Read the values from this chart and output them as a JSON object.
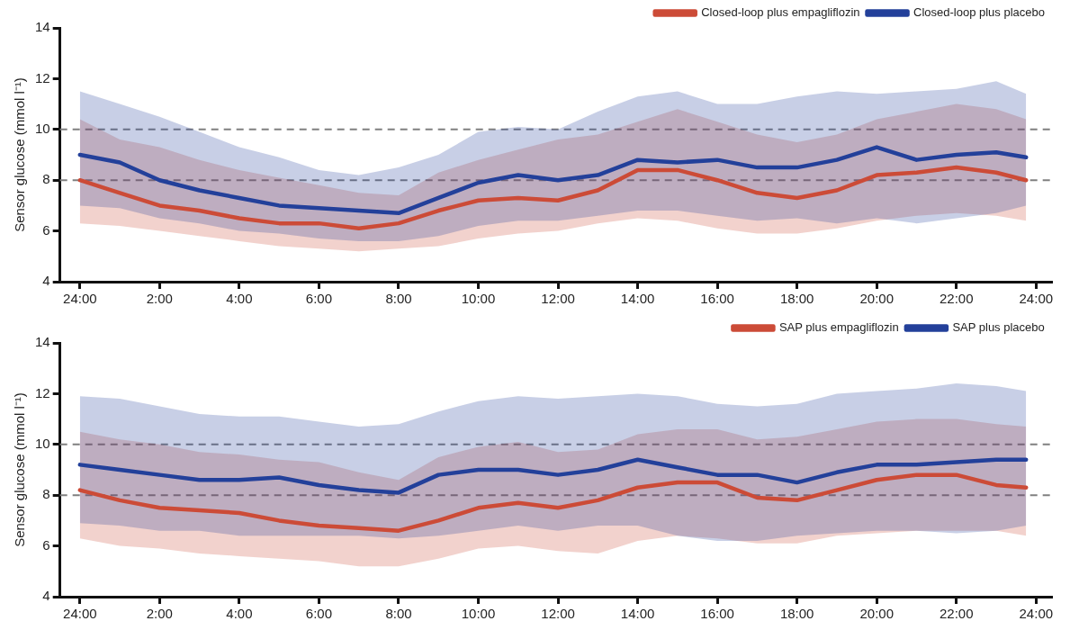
{
  "chart_data": [
    {
      "type": "line",
      "ylabel": "Sensor glucose (mmol l⁻¹)",
      "legend": "top right",
      "grid": false,
      "marker": "none",
      "line_style": "solid",
      "x": [
        "--01-02T00:00",
        "--01-02T01:00",
        "--01-02T02:00",
        "--01-02T03:00",
        "--01-02T04:00",
        "--01-02T05:00",
        "--01-02T06:00",
        "--01-02T07:00",
        "--01-02T08:00",
        "--01-02T09:00",
        "--01-02T10:00",
        "--01-02T11:00",
        "--01-02T12:00",
        "--01-02T13:00",
        "--01-02T14:00",
        "--01-02T15:00",
        "--01-02T16:00",
        "--01-02T17:00",
        "--01-02T18:00",
        "--01-02T19:00",
        "--01-02T20:00",
        "--01-02T21:00",
        "--01-02T22:00",
        "--01-02T23:00",
        "--01-02T23:45"
      ],
      "xlim": [
        "--01-01T23:30",
        "--01-03T00:24"
      ],
      "xticks": [
        {
          "value": "--01-02T00:00",
          "label": "24:00"
        },
        {
          "value": "--01-02T02:00",
          "label": "2:00"
        },
        {
          "value": "--01-02T04:00",
          "label": "4:00"
        },
        {
          "value": "--01-02T06:00",
          "label": "6:00"
        },
        {
          "value": "--01-02T08:00",
          "label": "8:00"
        },
        {
          "value": "--01-02T10:00",
          "label": "10:00"
        },
        {
          "value": "--01-02T12:00",
          "label": "12:00"
        },
        {
          "value": "--01-02T14:00",
          "label": "14:00"
        },
        {
          "value": "--01-02T16:00",
          "label": "16:00"
        },
        {
          "value": "--01-02T18:00",
          "label": "18:00"
        },
        {
          "value": "--01-02T20:00",
          "label": "20:00"
        },
        {
          "value": "--01-02T22:00",
          "label": "22:00"
        },
        {
          "value": "--01-03T00:00",
          "label": "24:00"
        }
      ],
      "ylim": [
        4,
        14
      ],
      "yticks": [
        4,
        6,
        8,
        10,
        12,
        14
      ],
      "ref_lines": [
        {
          "axis": "y",
          "value": 8,
          "label": null,
          "color": "#808080",
          "line_style": "dashed"
        },
        {
          "axis": "y",
          "value": 10,
          "label": null,
          "color": "#808080",
          "line_style": "dashed"
        }
      ],
      "series": [
        {
          "name": "Closed-loop plus empagliflozin",
          "color": "#cc4b37",
          "values": [
            8.0,
            7.5,
            7.0,
            6.8,
            6.5,
            6.3,
            6.3,
            6.1,
            6.3,
            6.8,
            7.2,
            7.3,
            7.2,
            7.6,
            8.4,
            8.4,
            8.0,
            7.5,
            7.3,
            7.6,
            8.2,
            8.3,
            8.5,
            8.3,
            8.0
          ],
          "lower": [
            6.3,
            6.2,
            6.0,
            5.8,
            5.6,
            5.4,
            5.3,
            5.2,
            5.3,
            5.4,
            5.7,
            5.9,
            6.0,
            6.3,
            6.5,
            6.4,
            6.1,
            5.9,
            5.9,
            6.1,
            6.4,
            6.6,
            6.7,
            6.6,
            6.4
          ],
          "upper": [
            10.4,
            9.6,
            9.3,
            8.8,
            8.4,
            8.1,
            7.8,
            7.5,
            7.4,
            8.3,
            8.8,
            9.2,
            9.6,
            9.8,
            10.3,
            10.8,
            10.3,
            9.8,
            9.5,
            9.8,
            10.4,
            10.7,
            11.0,
            10.8,
            10.4
          ]
        },
        {
          "name": "Closed-loop plus placebo",
          "color": "#23409a",
          "values": [
            9.0,
            8.7,
            8.0,
            7.6,
            7.3,
            7.0,
            6.9,
            6.8,
            6.7,
            7.3,
            7.9,
            8.2,
            8.0,
            8.2,
            8.8,
            8.7,
            8.8,
            8.5,
            8.5,
            8.8,
            9.3,
            8.8,
            9.0,
            9.1,
            8.9
          ],
          "lower": [
            7.0,
            6.9,
            6.5,
            6.3,
            6.0,
            5.9,
            5.7,
            5.6,
            5.6,
            5.8,
            6.2,
            6.4,
            6.4,
            6.6,
            6.8,
            6.8,
            6.6,
            6.4,
            6.5,
            6.3,
            6.5,
            6.3,
            6.5,
            6.7,
            7.0
          ],
          "upper": [
            11.5,
            11.0,
            10.5,
            9.9,
            9.3,
            8.9,
            8.4,
            8.2,
            8.5,
            9.0,
            9.9,
            10.1,
            10.0,
            10.7,
            11.3,
            11.5,
            11.0,
            11.0,
            11.3,
            11.5,
            11.4,
            11.5,
            11.6,
            11.9,
            11.4
          ]
        }
      ]
    },
    {
      "type": "line",
      "ylabel": "Sensor glucose (mmol l⁻¹)",
      "legend": "top right",
      "grid": false,
      "marker": "none",
      "line_style": "solid",
      "x": [
        "--01-02T00:00",
        "--01-02T01:00",
        "--01-02T02:00",
        "--01-02T03:00",
        "--01-02T04:00",
        "--01-02T05:00",
        "--01-02T06:00",
        "--01-02T07:00",
        "--01-02T08:00",
        "--01-02T09:00",
        "--01-02T10:00",
        "--01-02T11:00",
        "--01-02T12:00",
        "--01-02T13:00",
        "--01-02T14:00",
        "--01-02T15:00",
        "--01-02T16:00",
        "--01-02T17:00",
        "--01-02T18:00",
        "--01-02T19:00",
        "--01-02T20:00",
        "--01-02T21:00",
        "--01-02T22:00",
        "--01-02T23:00",
        "--01-02T23:45"
      ],
      "xlim": [
        "--01-01T23:30",
        "--01-03T00:24"
      ],
      "xticks": [
        {
          "value": "--01-02T00:00",
          "label": "24:00"
        },
        {
          "value": "--01-02T02:00",
          "label": "2:00"
        },
        {
          "value": "--01-02T04:00",
          "label": "4:00"
        },
        {
          "value": "--01-02T06:00",
          "label": "6:00"
        },
        {
          "value": "--01-02T08:00",
          "label": "8:00"
        },
        {
          "value": "--01-02T10:00",
          "label": "10:00"
        },
        {
          "value": "--01-02T12:00",
          "label": "12:00"
        },
        {
          "value": "--01-02T14:00",
          "label": "14:00"
        },
        {
          "value": "--01-02T16:00",
          "label": "16:00"
        },
        {
          "value": "--01-02T18:00",
          "label": "18:00"
        },
        {
          "value": "--01-02T20:00",
          "label": "20:00"
        },
        {
          "value": "--01-02T22:00",
          "label": "22:00"
        },
        {
          "value": "--01-03T00:00",
          "label": "24:00"
        }
      ],
      "ylim": [
        4,
        14
      ],
      "yticks": [
        4,
        6,
        8,
        10,
        12,
        14
      ],
      "ref_lines": [
        {
          "axis": "y",
          "value": 8,
          "label": null,
          "color": "#808080",
          "line_style": "dashed"
        },
        {
          "axis": "y",
          "value": 10,
          "label": null,
          "color": "#808080",
          "line_style": "dashed"
        }
      ],
      "series": [
        {
          "name": "SAP plus empagliflozin",
          "color": "#cc4b37",
          "values": [
            8.2,
            7.8,
            7.5,
            7.4,
            7.3,
            7.0,
            6.8,
            6.7,
            6.6,
            7.0,
            7.5,
            7.7,
            7.5,
            7.8,
            8.3,
            8.5,
            8.5,
            7.9,
            7.8,
            8.2,
            8.6,
            8.8,
            8.8,
            8.4,
            8.3
          ],
          "lower": [
            6.3,
            6.0,
            5.9,
            5.7,
            5.6,
            5.5,
            5.4,
            5.2,
            5.2,
            5.5,
            5.9,
            6.0,
            5.8,
            5.7,
            6.2,
            6.4,
            6.3,
            6.1,
            6.1,
            6.4,
            6.5,
            6.6,
            6.6,
            6.6,
            6.4
          ],
          "upper": [
            10.5,
            10.2,
            10.0,
            9.7,
            9.6,
            9.4,
            9.3,
            8.9,
            8.6,
            9.5,
            9.9,
            10.1,
            9.7,
            9.8,
            10.4,
            10.6,
            10.6,
            10.2,
            10.3,
            10.6,
            10.9,
            11.0,
            11.0,
            10.8,
            10.7
          ]
        },
        {
          "name": "SAP plus placebo",
          "color": "#23409a",
          "values": [
            9.2,
            9.0,
            8.8,
            8.6,
            8.6,
            8.7,
            8.4,
            8.2,
            8.1,
            8.8,
            9.0,
            9.0,
            8.8,
            9.0,
            9.4,
            9.1,
            8.8,
            8.8,
            8.5,
            8.9,
            9.2,
            9.2,
            9.3,
            9.4,
            9.4
          ],
          "lower": [
            6.9,
            6.8,
            6.6,
            6.6,
            6.4,
            6.4,
            6.4,
            6.4,
            6.3,
            6.4,
            6.6,
            6.8,
            6.6,
            6.8,
            6.8,
            6.4,
            6.2,
            6.2,
            6.4,
            6.5,
            6.6,
            6.6,
            6.5,
            6.6,
            6.8
          ],
          "upper": [
            11.9,
            11.8,
            11.5,
            11.2,
            11.1,
            11.1,
            10.9,
            10.7,
            10.8,
            11.3,
            11.7,
            11.9,
            11.8,
            11.9,
            12.0,
            11.9,
            11.6,
            11.5,
            11.6,
            12.0,
            12.1,
            12.2,
            12.4,
            12.3,
            12.1
          ]
        }
      ]
    }
  ]
}
